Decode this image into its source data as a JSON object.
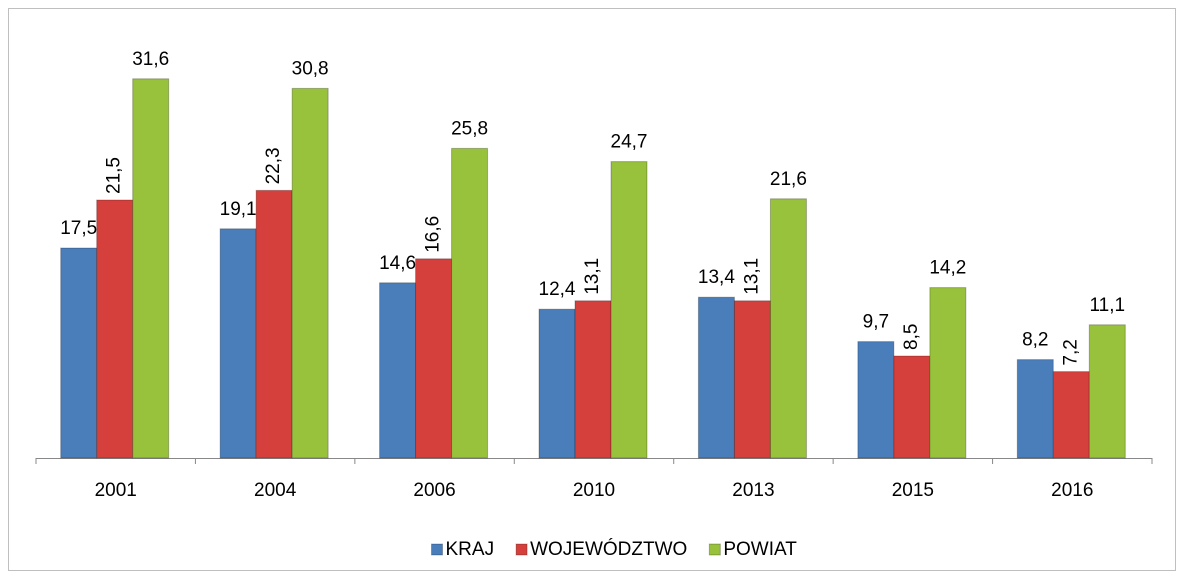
{
  "chart_data": {
    "type": "bar",
    "categories": [
      "2001",
      "2004",
      "2006",
      "2010",
      "2013",
      "2015",
      "2016"
    ],
    "series": [
      {
        "name": "KRAJ",
        "color": "#4a7ebb",
        "values": [
          17.5,
          19.1,
          14.6,
          12.4,
          13.4,
          9.7,
          8.2
        ],
        "value_labels": [
          "17,5",
          "19,1",
          "14,6",
          "12,4",
          "13,4",
          "9,7",
          "8,2"
        ]
      },
      {
        "name": "WOJEWÓDZTWO",
        "color": "#d6403c",
        "values": [
          21.5,
          22.3,
          16.6,
          13.1,
          13.1,
          8.5,
          7.2
        ],
        "value_labels": [
          "21,5",
          "22,3",
          "16,6",
          "13,1",
          "13,1",
          "8,5",
          "7,2"
        ]
      },
      {
        "name": "POWIAT",
        "color": "#98c13c",
        "values": [
          31.6,
          30.8,
          25.8,
          24.7,
          21.6,
          14.2,
          11.1
        ],
        "value_labels": [
          "31,6",
          "30,8",
          "25,8",
          "24,7",
          "21,6",
          "14,2",
          "11,1"
        ]
      }
    ],
    "ylim": [
      0,
      35
    ],
    "legend": "bottom"
  }
}
